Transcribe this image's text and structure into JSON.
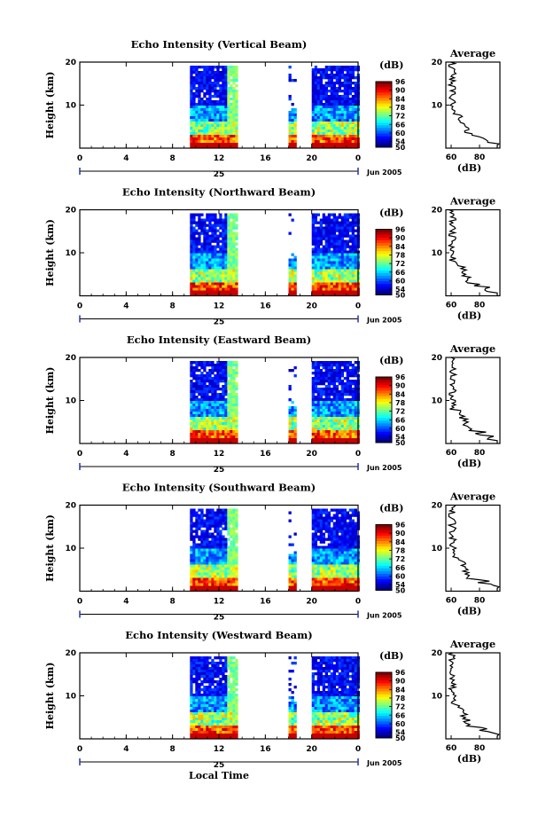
{
  "figure": {
    "x_label": "Local Time",
    "date_label": "Jun 2005",
    "day_label": "25",
    "colorbar_unit": "(dB)",
    "avg_title": "Average",
    "avg_xlabel": "(dB)"
  },
  "chart_data": [
    {
      "type": "heatmap",
      "title": "Echo Intensity (Vertical Beam)",
      "ylabel": "Height (km)",
      "xlim": [
        0,
        24
      ],
      "ylim": [
        0,
        20
      ],
      "x_ticks": [
        "0",
        "4",
        "8",
        "12",
        "16",
        "20",
        "0"
      ],
      "y_ticks": [
        "10",
        "20"
      ],
      "colorbar": {
        "label": "(dB)",
        "ticks": [
          "50",
          "54",
          "60",
          "66",
          "72",
          "78",
          "84",
          "90",
          "96"
        ],
        "range": [
          50,
          96
        ]
      },
      "data_segments": [
        {
          "x": [
            9.5,
            13.5
          ]
        },
        {
          "x": [
            18,
            18.5
          ]
        },
        {
          "x": [
            20,
            24
          ]
        }
      ],
      "average": {
        "title": "Average",
        "xlabel": "(dB)",
        "x_ticks": [
          "60",
          "80"
        ],
        "y_ticks": [
          "10",
          "20"
        ]
      }
    },
    {
      "type": "heatmap",
      "title": "Echo Intensity (Northward Beam)",
      "ylabel": "Height (km)",
      "xlim": [
        0,
        24
      ],
      "ylim": [
        0,
        20
      ],
      "x_ticks": [
        "0",
        "4",
        "8",
        "12",
        "16",
        "20",
        "0"
      ],
      "y_ticks": [
        "10",
        "20"
      ],
      "colorbar": {
        "label": "(dB)",
        "ticks": [
          "50",
          "54",
          "60",
          "66",
          "72",
          "78",
          "84",
          "90",
          "96"
        ],
        "range": [
          50,
          96
        ]
      },
      "data_segments": [
        {
          "x": [
            9.5,
            13.5
          ]
        },
        {
          "x": [
            18,
            18.5
          ]
        },
        {
          "x": [
            20,
            24
          ]
        }
      ],
      "average": {
        "title": "Average",
        "xlabel": "(dB)",
        "x_ticks": [
          "60",
          "80"
        ],
        "y_ticks": [
          "10",
          "20"
        ]
      }
    },
    {
      "type": "heatmap",
      "title": "Echo Intensity (Eastward Beam)",
      "ylabel": "Height (km)",
      "xlim": [
        0,
        24
      ],
      "ylim": [
        0,
        20
      ],
      "x_ticks": [
        "0",
        "4",
        "8",
        "12",
        "16",
        "20",
        "0"
      ],
      "y_ticks": [
        "10",
        "20"
      ],
      "colorbar": {
        "label": "(dB)",
        "ticks": [
          "50",
          "54",
          "60",
          "66",
          "72",
          "78",
          "84",
          "90",
          "96"
        ],
        "range": [
          50,
          96
        ]
      },
      "data_segments": [
        {
          "x": [
            9.5,
            13.5
          ]
        },
        {
          "x": [
            18,
            18.5
          ]
        },
        {
          "x": [
            20,
            24
          ]
        }
      ],
      "average": {
        "title": "Average",
        "xlabel": "(dB)",
        "x_ticks": [
          "60",
          "80"
        ],
        "y_ticks": [
          "10",
          "20"
        ]
      }
    },
    {
      "type": "heatmap",
      "title": "Echo Intensity (Southward Beam)",
      "ylabel": "Height (km)",
      "xlim": [
        0,
        24
      ],
      "ylim": [
        0,
        20
      ],
      "x_ticks": [
        "0",
        "4",
        "8",
        "12",
        "16",
        "20",
        "0"
      ],
      "y_ticks": [
        "10",
        "20"
      ],
      "colorbar": {
        "label": "(dB)",
        "ticks": [
          "50",
          "54",
          "60",
          "66",
          "72",
          "78",
          "84",
          "90",
          "96"
        ],
        "range": [
          50,
          96
        ]
      },
      "data_segments": [
        {
          "x": [
            9.5,
            13.5
          ]
        },
        {
          "x": [
            18,
            18.5
          ]
        },
        {
          "x": [
            20,
            24
          ]
        }
      ],
      "average": {
        "title": "Average",
        "xlabel": "(dB)",
        "x_ticks": [
          "60",
          "80"
        ],
        "y_ticks": [
          "10",
          "20"
        ]
      }
    },
    {
      "type": "heatmap",
      "title": "Echo Intensity (Westward Beam)",
      "ylabel": "Height (km)",
      "xlim": [
        0,
        24
      ],
      "ylim": [
        0,
        20
      ],
      "x_ticks": [
        "0",
        "4",
        "8",
        "12",
        "16",
        "20",
        "0"
      ],
      "y_ticks": [
        "10",
        "20"
      ],
      "colorbar": {
        "label": "(dB)",
        "ticks": [
          "50",
          "54",
          "60",
          "66",
          "72",
          "78",
          "84",
          "90",
          "96"
        ],
        "range": [
          50,
          96
        ]
      },
      "data_segments": [
        {
          "x": [
            9.5,
            13.5
          ]
        },
        {
          "x": [
            18,
            18.5
          ]
        },
        {
          "x": [
            20,
            24
          ]
        }
      ],
      "average": {
        "title": "Average",
        "xlabel": "(dB)",
        "x_ticks": [
          "60",
          "80"
        ],
        "y_ticks": [
          "10",
          "20"
        ]
      }
    }
  ]
}
